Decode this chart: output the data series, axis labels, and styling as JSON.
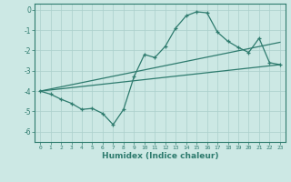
{
  "title": "",
  "xlabel": "Humidex (Indice chaleur)",
  "bg_color": "#cce8e4",
  "line_color": "#2e7b6e",
  "grid_color": "#aacfcb",
  "xlim": [
    -0.5,
    23.5
  ],
  "ylim": [
    -6.5,
    0.3
  ],
  "xticks": [
    0,
    1,
    2,
    3,
    4,
    5,
    6,
    7,
    8,
    9,
    10,
    11,
    12,
    13,
    14,
    15,
    16,
    17,
    18,
    19,
    20,
    21,
    22,
    23
  ],
  "yticks": [
    0,
    -1,
    -2,
    -3,
    -4,
    -5,
    -6
  ],
  "main_x": [
    0,
    1,
    2,
    3,
    4,
    5,
    6,
    7,
    8,
    9,
    10,
    11,
    12,
    13,
    14,
    15,
    16,
    17,
    18,
    19,
    20,
    21,
    22,
    23
  ],
  "main_y": [
    -4.0,
    -4.15,
    -4.4,
    -4.6,
    -4.9,
    -4.85,
    -5.1,
    -5.65,
    -4.9,
    -3.3,
    -2.2,
    -2.35,
    -1.8,
    -0.9,
    -0.3,
    -0.1,
    -0.15,
    -1.1,
    -1.55,
    -1.85,
    -2.1,
    -1.4,
    -2.6,
    -2.7
  ],
  "trend1_x": [
    0,
    23
  ],
  "trend1_y": [
    -4.0,
    -1.6
  ],
  "trend2_x": [
    0,
    23
  ],
  "trend2_y": [
    -4.0,
    -2.7
  ],
  "figsize": [
    3.2,
    2.0
  ],
  "dpi": 100
}
